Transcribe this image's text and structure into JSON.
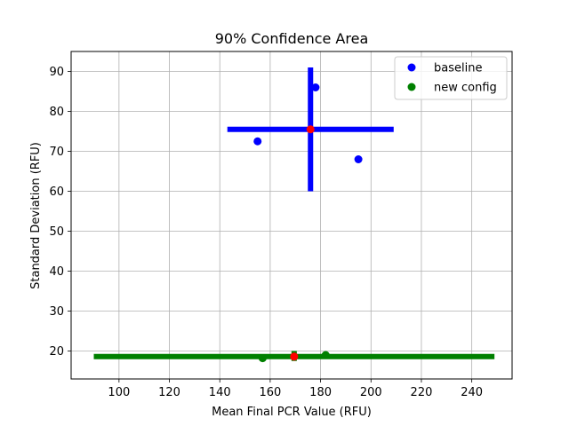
{
  "chart_data": {
    "type": "scatter",
    "title": "90% Confidence Area",
    "xlabel": "Mean Final PCR Value (RFU)",
    "ylabel": "Standard Deviation (RFU)",
    "xlim": [
      81,
      256
    ],
    "ylim": [
      13,
      95
    ],
    "xticks": [
      100,
      120,
      140,
      160,
      180,
      200,
      220,
      240
    ],
    "yticks": [
      20,
      30,
      40,
      50,
      60,
      70,
      80,
      90
    ],
    "grid": true,
    "legend_position": "top-right",
    "series": [
      {
        "name": "baseline",
        "color": "#0000ff",
        "points": [
          [
            155,
            72.5
          ],
          [
            178,
            86
          ],
          [
            195,
            68
          ]
        ],
        "center": [
          176,
          75.5
        ],
        "x_interval": [
          143,
          209
        ],
        "y_interval": [
          60,
          91
        ]
      },
      {
        "name": "new config",
        "color": "#008000",
        "points": [
          [
            157,
            18.2
          ],
          [
            182,
            19
          ]
        ],
        "center": [
          169.5,
          18.6
        ],
        "x_interval": [
          90,
          249
        ],
        "y_interval": [
          17.5,
          20
        ]
      }
    ],
    "center_marker_color": "#ff0000"
  }
}
